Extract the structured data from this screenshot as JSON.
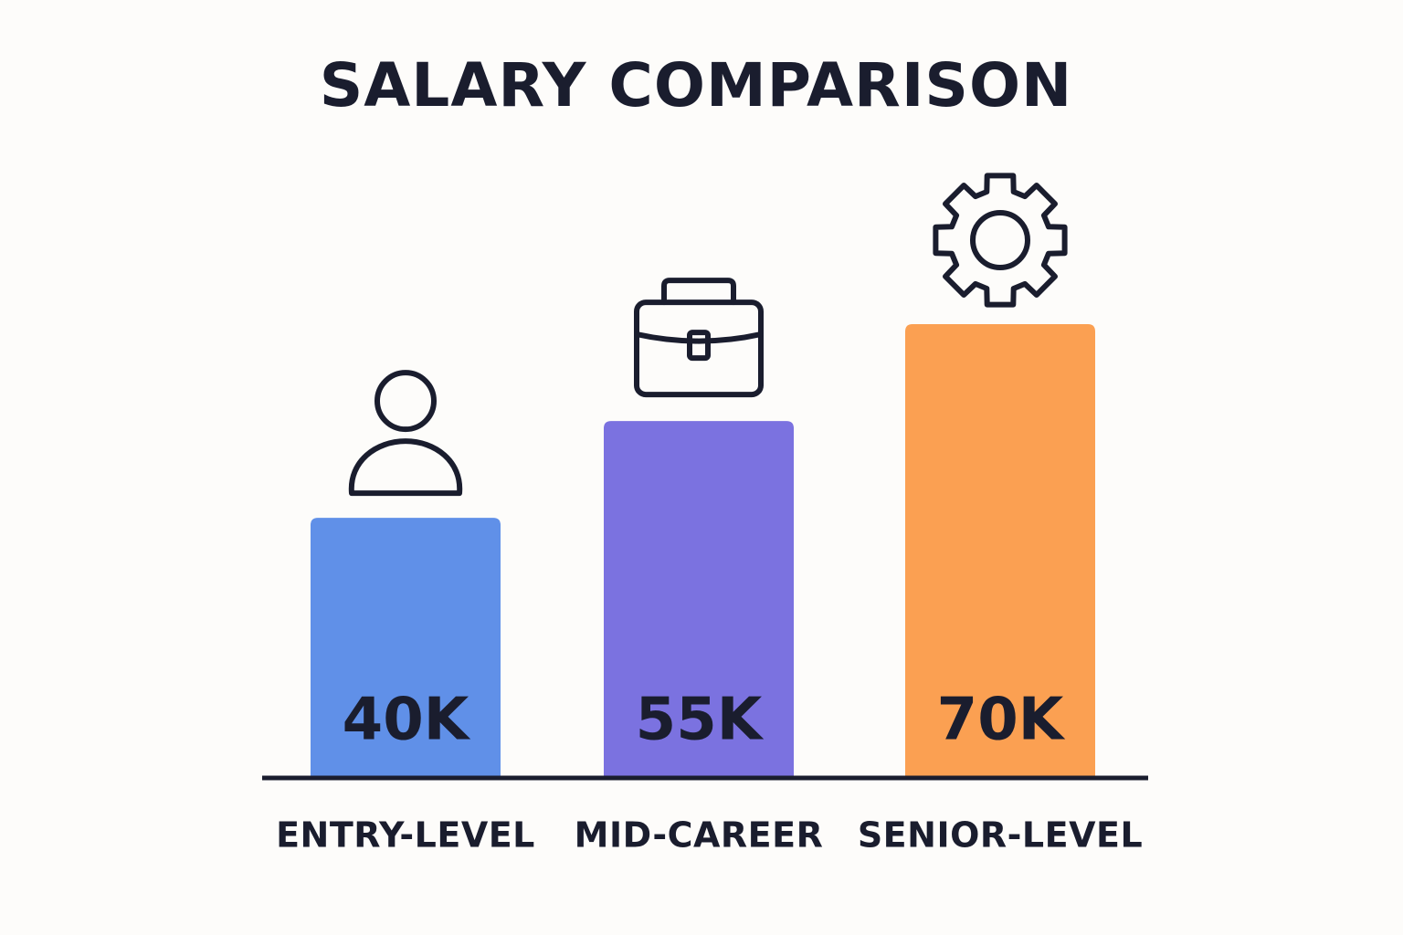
{
  "chart_data": {
    "type": "bar",
    "title": "SALARY COMPARISON",
    "categories": [
      "ENTRY-LEVEL",
      "MID-CAREER",
      "SENIOR-LEVEL"
    ],
    "values": [
      40,
      55,
      70
    ],
    "value_labels": [
      "40K",
      "55K",
      "70K"
    ],
    "colors": [
      "#6090e8",
      "#7b72e0",
      "#fba052"
    ]
  }
}
